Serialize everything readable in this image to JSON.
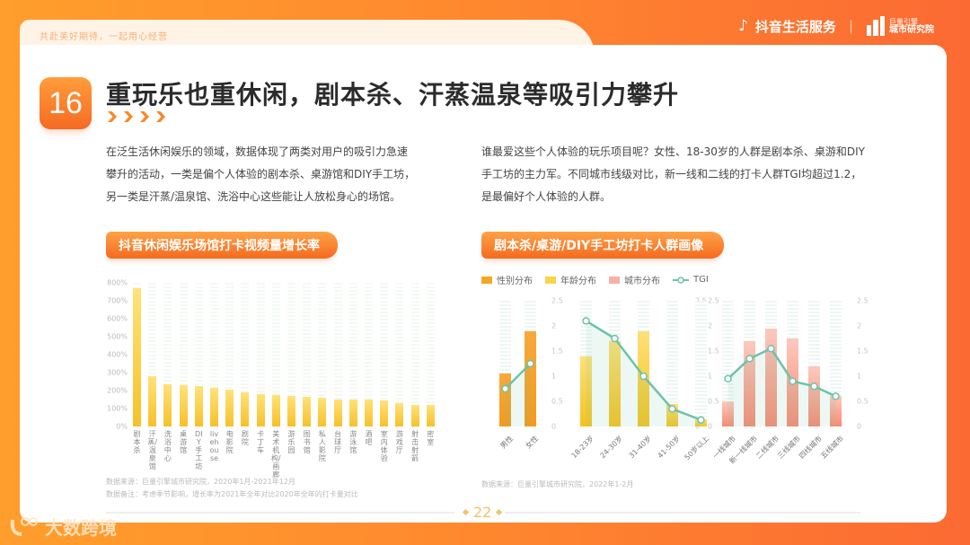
{
  "header": {
    "slogan": "共赴美好期待，一起用心经营",
    "brand_main": "抖音生活服务",
    "brand_sep": "|",
    "inst_top": "巨量引擎",
    "inst_bottom": "城市研究院"
  },
  "section": {
    "number": "16",
    "title": "重玩乐也重休闲，剧本杀、汗蒸温泉等吸引力攀升"
  },
  "left": {
    "paragraph": "在泛生活休闲娱乐的领域，数据体现了两类对用户的吸引力急速攀升的活动，一类是偏个人体验的剧本杀、桌游馆和DIY手工坊，另一类是汗蒸/温泉馆、洗浴中心这些能让人放松身心的场馆。",
    "chart_title": "抖音休闲娱乐场馆打卡视频量增长率",
    "source": "数据来源：巨量引擎城市研究院，2020年1月-2021年12月",
    "note": "数据备注：考虑季节影响，增长率为2021年全年对比2020年全年的打卡量对比"
  },
  "right": {
    "paragraph": "谁最爱这些个人体验的玩乐项目呢？女性、18-30岁的人群是剧本杀、桌游和DIY手工坊的主力军。不同城市线级对比，新一线和二线的打卡人群TGI均超过1.2，是最偏好个人体验的人群。",
    "chart_title": "剧本杀/桌游/DIY手工坊打卡人群画像",
    "legend": [
      "性别分布",
      "年龄分布",
      "城市分布",
      "TGI"
    ],
    "source": "数据来源：巨量引擎城市研究院，2022年1-2月"
  },
  "footer": {
    "page": "22",
    "watermark": "大数跨境"
  },
  "colors": {
    "accent": "#f7892a",
    "gender_bar": "#f5a623",
    "age_bar": "#f8cf2c",
    "city_bar": "#fa8c7a",
    "tgi_line": "#6cc3a8",
    "growth_bar": "#f6c12a"
  },
  "chart_data": [
    {
      "type": "bar",
      "title": "抖音休闲娱乐场馆打卡视频量增长率",
      "xlabel": "",
      "ylabel": "",
      "ylim": [
        0,
        800
      ],
      "yticks": [
        "0%",
        "100%",
        "200%",
        "300%",
        "400%",
        "500%",
        "600%",
        "700%",
        "800%"
      ],
      "grid": false,
      "categories": [
        "剧本杀",
        "汗蒸/温泉馆",
        "洗浴中心",
        "桌游馆",
        "DIY手工坊",
        "livehouse",
        "电影院",
        "剧院",
        "卡丁车",
        "美术机构/画廊",
        "游乐园",
        "图书馆",
        "私人影院",
        "台球厅",
        "游泳馆",
        "酒吧",
        "室内体验",
        "游戏厅",
        "射击射箭",
        "密室"
      ],
      "values": [
        770,
        280,
        235,
        230,
        225,
        215,
        205,
        190,
        180,
        175,
        170,
        165,
        160,
        150,
        150,
        150,
        145,
        130,
        120,
        120
      ],
      "unit": "%"
    },
    {
      "type": "bar+line",
      "title": "剧本杀/桌游/DIY手工坊打卡人群画像",
      "ylim": [
        0,
        2.5
      ],
      "yticks": [
        "0",
        "0.5",
        "1",
        "1.5",
        "2",
        "2.5"
      ],
      "legend": [
        "性别分布",
        "年龄分布",
        "城市分布",
        "TGI"
      ],
      "groups": [
        {
          "name": "性别分布",
          "categories": [
            "男性",
            "女性"
          ],
          "values": [
            1.05,
            1.9
          ],
          "tgi": [
            0.75,
            1.25
          ]
        },
        {
          "name": "年龄分布",
          "categories": [
            "18-23岁",
            "24-30岁",
            "31-40岁",
            "41-50岁",
            "50岁以上"
          ],
          "values": [
            1.4,
            1.7,
            1.9,
            0.45,
            0.15
          ],
          "tgi": [
            2.1,
            1.75,
            1.0,
            0.35,
            0.13
          ]
        },
        {
          "name": "城市分布",
          "categories": [
            "一线城市",
            "新一线城市",
            "二线城市",
            "三线城市",
            "四线城市",
            "五线城市"
          ],
          "values": [
            0.5,
            1.7,
            1.95,
            1.75,
            1.2,
            0.6
          ],
          "tgi": [
            0.95,
            1.35,
            1.55,
            0.9,
            0.8,
            0.6
          ]
        }
      ]
    }
  ]
}
